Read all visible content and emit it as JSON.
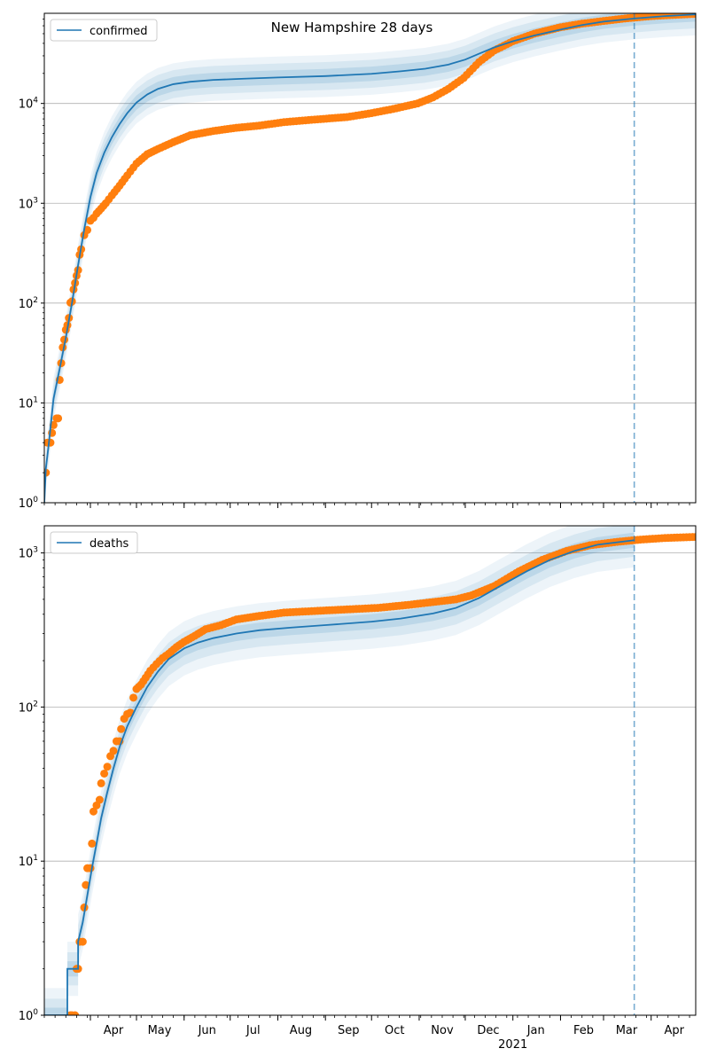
{
  "chart_data": [
    {
      "type": "line",
      "title": "New Hampshire 28 days",
      "yscale": "log",
      "ylim": [
        1,
        80000
      ],
      "xlim": [
        "2020-03-02",
        "2021-04-30"
      ],
      "vline": "2021-03-21",
      "legend": {
        "position": "top-left",
        "entries": [
          "confirmed"
        ]
      },
      "grid": "y-major",
      "yticks": [
        {
          "value": 1,
          "base": "10",
          "exp": "0"
        },
        {
          "value": 10,
          "base": "10",
          "exp": "1"
        },
        {
          "value": 100,
          "base": "10",
          "exp": "2"
        },
        {
          "value": 1000,
          "base": "10",
          "exp": "3"
        },
        {
          "value": 10000,
          "base": "10",
          "exp": "4"
        }
      ],
      "series": [
        {
          "name": "confirmed",
          "kind": "model",
          "color": "#1f77b4",
          "points": [
            [
              "2020-03-02",
              1
            ],
            [
              "2020-03-03",
              2.2
            ],
            [
              "2020-03-05",
              4
            ],
            [
              "2020-03-08",
              11
            ],
            [
              "2020-03-12",
              22
            ],
            [
              "2020-03-16",
              45
            ],
            [
              "2020-03-20",
              100
            ],
            [
              "2020-03-24",
              240
            ],
            [
              "2020-03-28",
              550
            ],
            [
              "2020-04-01",
              1150
            ],
            [
              "2020-04-05",
              2000
            ],
            [
              "2020-04-10",
              3200
            ],
            [
              "2020-04-15",
              4600
            ],
            [
              "2020-04-20",
              6200
            ],
            [
              "2020-04-25",
              8000
            ],
            [
              "2020-05-01",
              10200
            ],
            [
              "2020-05-08",
              12300
            ],
            [
              "2020-05-15",
              14000
            ],
            [
              "2020-05-25",
              15600
            ],
            [
              "2020-06-05",
              16500
            ],
            [
              "2020-06-20",
              17200
            ],
            [
              "2020-07-10",
              17700
            ],
            [
              "2020-08-01",
              18200
            ],
            [
              "2020-09-01",
              18800
            ],
            [
              "2020-10-01",
              19800
            ],
            [
              "2020-10-20",
              21000
            ],
            [
              "2020-11-05",
              22300
            ],
            [
              "2020-11-20",
              24500
            ],
            [
              "2020-12-01",
              27500
            ],
            [
              "2020-12-10",
              31500
            ],
            [
              "2020-12-20",
              36500
            ],
            [
              "2021-01-01",
              42000
            ],
            [
              "2021-01-15",
              48000
            ],
            [
              "2021-02-01",
              55000
            ],
            [
              "2021-02-15",
              61000
            ],
            [
              "2021-03-01",
              66000
            ],
            [
              "2021-03-21",
              71000
            ],
            [
              "2021-04-10",
              75000
            ],
            [
              "2021-04-30",
              78000
            ]
          ],
          "band_spread": [
            1.18,
            1.38,
            1.62
          ]
        },
        {
          "name": "",
          "kind": "observed",
          "color": "#ff7f0e",
          "points": [
            [
              "2020-03-02",
              2
            ],
            [
              "2020-03-03",
              2
            ],
            [
              "2020-03-04",
              4
            ],
            [
              "2020-03-06",
              4
            ],
            [
              "2020-03-07",
              5
            ],
            [
              "2020-03-08",
              6
            ],
            [
              "2020-03-10",
              7
            ],
            [
              "2020-03-11",
              7
            ],
            [
              "2020-03-12",
              17
            ],
            [
              "2020-03-13",
              25
            ],
            [
              "2020-03-14",
              36
            ],
            [
              "2020-03-15",
              43
            ],
            [
              "2020-03-16",
              54
            ],
            [
              "2020-03-17",
              60
            ],
            [
              "2020-03-18",
              71
            ],
            [
              "2020-03-19",
              101
            ],
            [
              "2020-03-20",
              104
            ],
            [
              "2020-03-21",
              137
            ],
            [
              "2020-03-22",
              159
            ],
            [
              "2020-03-23",
              188
            ],
            [
              "2020-03-24",
              214
            ],
            [
              "2020-03-25",
              305
            ],
            [
              "2020-03-26",
              346
            ],
            [
              "2020-03-28",
              479
            ],
            [
              "2020-03-30",
              540
            ],
            [
              "2020-04-01",
              669
            ],
            [
              "2020-04-03",
              715
            ],
            [
              "2020-04-05",
              788
            ],
            [
              "2020-04-08",
              885
            ],
            [
              "2020-04-11",
              1000
            ],
            [
              "2020-04-15",
              1200
            ],
            [
              "2020-04-20",
              1500
            ],
            [
              "2020-04-25",
              1900
            ],
            [
              "2020-05-01",
              2500
            ],
            [
              "2020-05-08",
              3100
            ],
            [
              "2020-05-15",
              3500
            ],
            [
              "2020-05-25",
              4100
            ],
            [
              "2020-06-05",
              4800
            ],
            [
              "2020-06-20",
              5300
            ],
            [
              "2020-07-05",
              5700
            ],
            [
              "2020-07-20",
              6000
            ],
            [
              "2020-08-05",
              6500
            ],
            [
              "2020-08-25",
              6900
            ],
            [
              "2020-09-15",
              7300
            ],
            [
              "2020-10-01",
              8000
            ],
            [
              "2020-10-15",
              8800
            ],
            [
              "2020-10-31",
              10000
            ],
            [
              "2020-11-10",
              11500
            ],
            [
              "2020-11-20",
              14000
            ],
            [
              "2020-11-30",
              18000
            ],
            [
              "2020-12-10",
              26000
            ],
            [
              "2020-12-20",
              34000
            ],
            [
              "2021-01-01",
              42000
            ],
            [
              "2021-01-15",
              50000
            ],
            [
              "2021-02-01",
              58000
            ],
            [
              "2021-02-15",
              63000
            ],
            [
              "2021-03-01",
              67000
            ],
            [
              "2021-03-15",
              71000
            ],
            [
              "2021-04-01",
              75000
            ],
            [
              "2021-04-15",
              77000
            ],
            [
              "2021-04-30",
              79000
            ]
          ]
        }
      ]
    },
    {
      "type": "line",
      "title": "",
      "yscale": "log",
      "ylim": [
        1,
        1500
      ],
      "xlim": [
        "2020-03-02",
        "2021-04-30"
      ],
      "vline": "2021-03-21",
      "legend": {
        "position": "top-left",
        "entries": [
          "deaths"
        ]
      },
      "grid": "y-major",
      "yticks": [
        {
          "value": 1,
          "base": "10",
          "exp": "0"
        },
        {
          "value": 10,
          "base": "10",
          "exp": "1"
        },
        {
          "value": 100,
          "base": "10",
          "exp": "2"
        },
        {
          "value": 1000,
          "base": "10",
          "exp": "3"
        }
      ],
      "xticks": [
        {
          "date": "2020-04-01",
          "label": "Apr"
        },
        {
          "date": "2020-05-01",
          "label": "May"
        },
        {
          "date": "2020-06-01",
          "label": "Jun"
        },
        {
          "date": "2020-07-01",
          "label": "Jul"
        },
        {
          "date": "2020-08-01",
          "label": "Aug"
        },
        {
          "date": "2020-09-01",
          "label": "Sep"
        },
        {
          "date": "2020-10-01",
          "label": "Oct"
        },
        {
          "date": "2020-11-01",
          "label": "Nov"
        },
        {
          "date": "2020-12-01",
          "label": "Dec"
        },
        {
          "date": "2021-01-01",
          "label": "Jan"
        },
        {
          "date": "2021-02-01",
          "label": "Feb"
        },
        {
          "date": "2021-03-01",
          "label": "Mar"
        },
        {
          "date": "2021-04-01",
          "label": "Apr"
        }
      ],
      "year_label": {
        "date": "2021-01-01",
        "label": "2021"
      },
      "series": [
        {
          "name": "deaths",
          "kind": "model",
          "color": "#1f77b4",
          "points": [
            [
              "2020-03-02",
              1
            ],
            [
              "2020-03-17",
              1
            ],
            [
              "2020-03-17",
              2
            ],
            [
              "2020-03-24",
              2
            ],
            [
              "2020-03-24",
              3
            ],
            [
              "2020-03-27",
              4
            ],
            [
              "2020-03-30",
              6
            ],
            [
              "2020-04-02",
              9
            ],
            [
              "2020-04-05",
              13
            ],
            [
              "2020-04-08",
              19
            ],
            [
              "2020-04-12",
              28
            ],
            [
              "2020-04-16",
              40
            ],
            [
              "2020-04-20",
              55
            ],
            [
              "2020-04-25",
              75
            ],
            [
              "2020-05-01",
              100
            ],
            [
              "2020-05-08",
              135
            ],
            [
              "2020-05-15",
              170
            ],
            [
              "2020-05-22",
              205
            ],
            [
              "2020-06-01",
              240
            ],
            [
              "2020-06-10",
              262
            ],
            [
              "2020-06-20",
              280
            ],
            [
              "2020-07-05",
              300
            ],
            [
              "2020-07-20",
              315
            ],
            [
              "2020-08-10",
              328
            ],
            [
              "2020-09-01",
              340
            ],
            [
              "2020-10-01",
              358
            ],
            [
              "2020-10-20",
              375
            ],
            [
              "2020-11-10",
              405
            ],
            [
              "2020-11-25",
              440
            ],
            [
              "2020-12-10",
              510
            ],
            [
              "2020-12-25",
              620
            ],
            [
              "2021-01-10",
              760
            ],
            [
              "2021-01-25",
              900
            ],
            [
              "2021-02-10",
              1030
            ],
            [
              "2021-02-25",
              1130
            ],
            [
              "2021-03-21",
              1210
            ]
          ],
          "band_spread": [
            1.12,
            1.28,
            1.5
          ]
        },
        {
          "name": "",
          "kind": "observed",
          "color": "#ff7f0e",
          "points": [
            [
              "2020-03-19",
              1
            ],
            [
              "2020-03-20",
              1
            ],
            [
              "2020-03-22",
              1
            ],
            [
              "2020-03-23",
              2
            ],
            [
              "2020-03-24",
              2
            ],
            [
              "2020-03-25",
              3
            ],
            [
              "2020-03-27",
              3
            ],
            [
              "2020-03-28",
              5
            ],
            [
              "2020-03-29",
              7
            ],
            [
              "2020-03-30",
              9
            ],
            [
              "2020-04-01",
              9
            ],
            [
              "2020-04-02",
              13
            ],
            [
              "2020-04-03",
              21
            ],
            [
              "2020-04-05",
              23
            ],
            [
              "2020-04-07",
              25
            ],
            [
              "2020-04-08",
              32
            ],
            [
              "2020-04-10",
              37
            ],
            [
              "2020-04-12",
              41
            ],
            [
              "2020-04-14",
              48
            ],
            [
              "2020-04-16",
              52
            ],
            [
              "2020-04-18",
              60
            ],
            [
              "2020-04-20",
              60
            ],
            [
              "2020-04-21",
              72
            ],
            [
              "2020-04-23",
              84
            ],
            [
              "2020-04-25",
              90
            ],
            [
              "2020-04-27",
              92
            ],
            [
              "2020-04-29",
              115
            ],
            [
              "2020-05-01",
              131
            ],
            [
              "2020-05-04",
              140
            ],
            [
              "2020-05-07",
              155
            ],
            [
              "2020-05-10",
              172
            ],
            [
              "2020-05-14",
              190
            ],
            [
              "2020-05-18",
              208
            ],
            [
              "2020-05-22",
              222
            ],
            [
              "2020-05-27",
              245
            ],
            [
              "2020-06-01",
              265
            ],
            [
              "2020-06-08",
              290
            ],
            [
              "2020-06-15",
              320
            ],
            [
              "2020-06-25",
              340
            ],
            [
              "2020-07-05",
              370
            ],
            [
              "2020-07-20",
              390
            ],
            [
              "2020-08-05",
              410
            ],
            [
              "2020-08-25",
              420
            ],
            [
              "2020-09-15",
              430
            ],
            [
              "2020-10-05",
              440
            ],
            [
              "2020-10-25",
              460
            ],
            [
              "2020-11-10",
              480
            ],
            [
              "2020-11-25",
              500
            ],
            [
              "2020-12-05",
              530
            ],
            [
              "2020-12-20",
              610
            ],
            [
              "2021-01-05",
              760
            ],
            [
              "2021-01-20",
              900
            ],
            [
              "2021-02-05",
              1030
            ],
            [
              "2021-02-20",
              1120
            ],
            [
              "2021-03-10",
              1180
            ],
            [
              "2021-03-25",
              1220
            ],
            [
              "2021-04-10",
              1250
            ],
            [
              "2021-04-30",
              1270
            ]
          ]
        }
      ]
    }
  ]
}
